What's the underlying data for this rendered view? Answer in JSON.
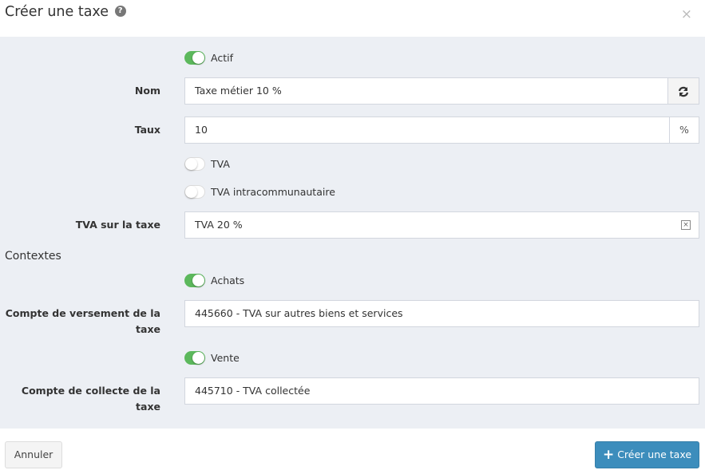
{
  "modal": {
    "title": "Créer une taxe",
    "help_icon": "question-circle-icon",
    "close": "×"
  },
  "form": {
    "actif": {
      "label": "Actif",
      "on": true
    },
    "nom": {
      "label": "Nom",
      "value": "Taxe métier 10 %",
      "addon_icon": "refresh-icon"
    },
    "taux": {
      "label": "Taux",
      "value": "10",
      "addon": "%"
    },
    "tva": {
      "label": "TVA",
      "on": false
    },
    "tva_intra": {
      "label": "TVA intracommunautaire",
      "on": false
    },
    "tva_sur_taxe": {
      "label": "TVA sur la taxe",
      "value": "TVA 20 %",
      "clear_icon": "clear-x-icon"
    },
    "contextes": "Contextes",
    "achats": {
      "label": "Achats",
      "on": true
    },
    "compte_versement": {
      "label_line1": "Compte de versement de la",
      "label_line2": "taxe",
      "value": "445660 - TVA sur autres biens et services"
    },
    "vente": {
      "label": "Vente",
      "on": true
    },
    "compte_collecte": {
      "label": "Compte de collecte de la taxe",
      "value": "445710 - TVA collectée"
    }
  },
  "footer": {
    "cancel": "Annuler",
    "submit": "Créer une taxe",
    "submit_color": "#3c8dbc"
  },
  "colors": {
    "toggle_on": "#5cb85c",
    "form_bg": "#eceff4"
  }
}
